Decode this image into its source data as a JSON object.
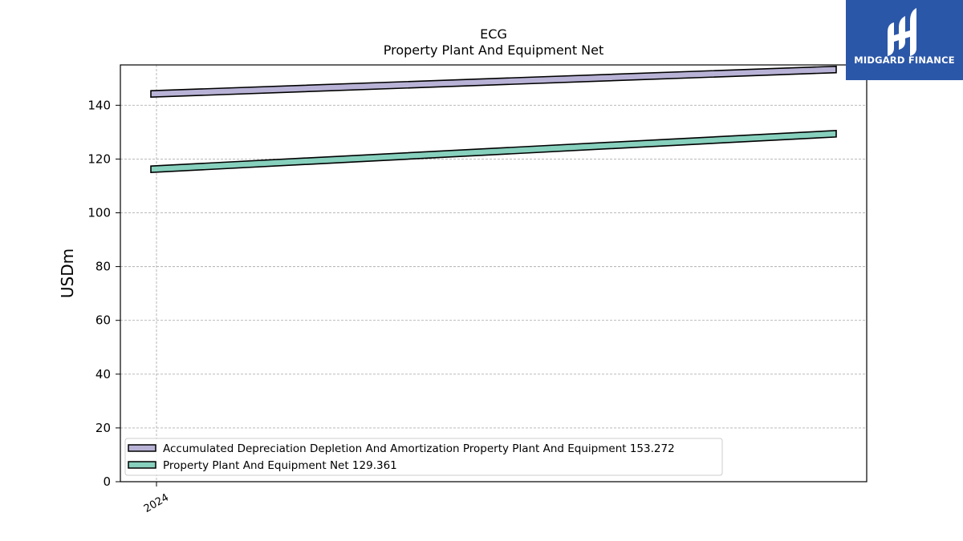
{
  "chart_data": {
    "type": "line",
    "title": "ECG",
    "subtitle": "Property Plant And Equipment Net",
    "ylabel": "USDm",
    "xlabel": "",
    "x_tick_labels": [
      "2024"
    ],
    "ylim": [
      0,
      155
    ],
    "y_ticks": [
      0,
      20,
      40,
      60,
      80,
      100,
      120,
      140
    ],
    "grid": true,
    "legend_position": "lower-left",
    "series": [
      {
        "name": "Accumulated Depreciation Depletion And Amortization Property Plant And Equipment",
        "legend_value": "153.272",
        "color": "#b8b3d6",
        "start": 144.2,
        "end": 153.3
      },
      {
        "name": "Property Plant And Equipment Net",
        "legend_value": "129.361",
        "color": "#86d0bd",
        "start": 116.2,
        "end": 129.4
      }
    ]
  },
  "logo": {
    "text": "MIDGARD FINANCE",
    "color": "#2b57a8"
  }
}
